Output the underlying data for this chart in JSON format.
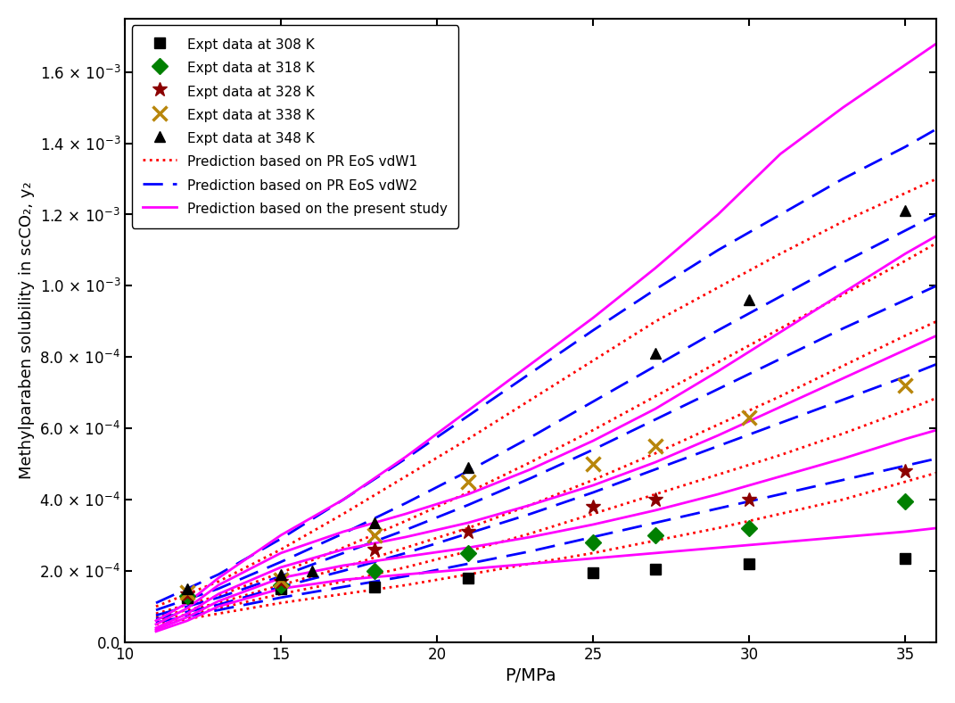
{
  "title": "",
  "xlabel": "P/MPa",
  "ylabel": "Methylparaben solubility in scCO₂, y₂",
  "xlim": [
    10,
    36
  ],
  "ylim": [
    0.0,
    0.00175
  ],
  "yticks": [
    0.0,
    0.0002,
    0.0004,
    0.0006,
    0.0008,
    0.001,
    0.0012,
    0.0014,
    0.0016
  ],
  "xticks": [
    10,
    15,
    20,
    25,
    30,
    35
  ],
  "expt_308": {
    "x": [
      12,
      15,
      18,
      21,
      25,
      27,
      30,
      35
    ],
    "y": [
      0.000125,
      0.00015,
      0.000155,
      0.00018,
      0.000195,
      0.000205,
      0.00022,
      0.000235
    ],
    "color": "black",
    "marker": "s",
    "label": "Expt data at 308 K"
  },
  "expt_318": {
    "x": [
      12,
      15,
      18,
      21,
      25,
      27,
      30,
      35
    ],
    "y": [
      0.00013,
      0.00016,
      0.0002,
      0.00025,
      0.00028,
      0.0003,
      0.00032,
      0.000395
    ],
    "color": "green",
    "marker": "D",
    "label": "Expt data at 318 K"
  },
  "expt_328": {
    "x": [
      12,
      15,
      18,
      21,
      25,
      27,
      30,
      35
    ],
    "y": [
      0.000135,
      0.00017,
      0.00026,
      0.00031,
      0.00038,
      0.0004,
      0.0004,
      0.00048
    ],
    "color": "darkred",
    "marker": "*",
    "label": "Expt data at 328 K"
  },
  "expt_338": {
    "x": [
      12,
      15,
      18,
      21,
      25,
      27,
      30,
      35
    ],
    "y": [
      0.00014,
      0.000175,
      0.0003,
      0.00045,
      0.0005,
      0.00055,
      0.00063,
      0.00072
    ],
    "color": "#b8860b",
    "marker": "x",
    "label": "Expt data at 338 K"
  },
  "expt_348": {
    "x": [
      12,
      15,
      16,
      18,
      21,
      27,
      30,
      35
    ],
    "y": [
      0.00015,
      0.00019,
      0.0002,
      0.000335,
      0.00049,
      0.00081,
      0.00096,
      0.00121
    ],
    "color": "black",
    "marker": "^",
    "label": "Expt data at 348 K"
  },
  "pred_vdw1": {
    "temps": [
      "308",
      "318",
      "328",
      "338",
      "348"
    ],
    "color": "red",
    "linestyle": "dotted",
    "linewidth": 2.0,
    "label": "Prediction based on PR EoS vdW1",
    "curves": {
      "308": {
        "x": [
          11,
          13,
          15,
          17,
          19,
          21,
          23,
          25,
          27,
          29,
          31,
          33,
          35,
          36
        ],
        "y": [
          5e-05,
          8e-05,
          0.00011,
          0.000135,
          0.00016,
          0.00019,
          0.00022,
          0.00025,
          0.000285,
          0.00032,
          0.00036,
          0.0004,
          0.00045,
          0.000475
        ]
      },
      "318": {
        "x": [
          11,
          13,
          15,
          17,
          19,
          21,
          23,
          25,
          27,
          29,
          31,
          33,
          35,
          36
        ],
        "y": [
          6e-05,
          9.5e-05,
          0.000135,
          0.00017,
          0.00021,
          0.000255,
          0.000305,
          0.00036,
          0.000415,
          0.00047,
          0.000525,
          0.000585,
          0.00065,
          0.000685
        ]
      },
      "328": {
        "x": [
          11,
          13,
          15,
          17,
          19,
          21,
          23,
          25,
          27,
          29,
          31,
          33,
          35,
          36
        ],
        "y": [
          7e-05,
          0.00011,
          0.00016,
          0.00021,
          0.000265,
          0.00032,
          0.000385,
          0.000455,
          0.00053,
          0.00061,
          0.00069,
          0.000775,
          0.00086,
          0.0009
        ]
      },
      "338": {
        "x": [
          11,
          13,
          15,
          17,
          19,
          21,
          23,
          25,
          27,
          29,
          31,
          33,
          35,
          36
        ],
        "y": [
          8e-05,
          0.00013,
          0.000195,
          0.000265,
          0.00034,
          0.00042,
          0.000505,
          0.000595,
          0.00069,
          0.000785,
          0.00088,
          0.000975,
          0.00107,
          0.00112
        ]
      },
      "348": {
        "x": [
          11,
          13,
          15,
          17,
          19,
          21,
          23,
          25,
          27,
          29,
          31,
          33,
          35,
          36
        ],
        "y": [
          0.0001,
          0.00017,
          0.00026,
          0.00036,
          0.000465,
          0.00057,
          0.00068,
          0.00079,
          0.0009,
          0.000995,
          0.00109,
          0.00118,
          0.00126,
          0.0013
        ]
      }
    }
  },
  "pred_vdw2": {
    "temps": [
      "308",
      "318",
      "328",
      "338",
      "348"
    ],
    "color": "blue",
    "linestyle": "dashed",
    "linewidth": 2.0,
    "label": "Prediction based on PR EoS vdW2",
    "curves": {
      "308": {
        "x": [
          11,
          13,
          15,
          17,
          19,
          21,
          23,
          25,
          27,
          29,
          31,
          33,
          35,
          36
        ],
        "y": [
          5.5e-05,
          9e-05,
          0.000125,
          0.000155,
          0.000185,
          0.00022,
          0.000255,
          0.000295,
          0.000335,
          0.000375,
          0.000415,
          0.000455,
          0.000495,
          0.000515
        ]
      },
      "318": {
        "x": [
          11,
          13,
          15,
          17,
          19,
          21,
          23,
          25,
          27,
          29,
          31,
          33,
          35,
          36
        ],
        "y": [
          6.5e-05,
          0.000105,
          0.000155,
          0.0002,
          0.00025,
          0.000305,
          0.00036,
          0.00042,
          0.000485,
          0.00055,
          0.000615,
          0.00068,
          0.000745,
          0.00078
        ]
      },
      "328": {
        "x": [
          11,
          13,
          15,
          17,
          19,
          21,
          23,
          25,
          27,
          29,
          31,
          33,
          35,
          36
        ],
        "y": [
          7.5e-05,
          0.000125,
          0.000185,
          0.00025,
          0.000315,
          0.000385,
          0.00046,
          0.00054,
          0.000625,
          0.00071,
          0.000795,
          0.00088,
          0.00096,
          0.001
        ]
      },
      "338": {
        "x": [
          11,
          13,
          15,
          17,
          19,
          21,
          23,
          25,
          27,
          29,
          31,
          33,
          35,
          36
        ],
        "y": [
          9e-05,
          0.00015,
          0.000225,
          0.000305,
          0.00039,
          0.00048,
          0.000575,
          0.000675,
          0.000775,
          0.000875,
          0.00097,
          0.001065,
          0.001155,
          0.0012
        ]
      },
      "348": {
        "x": [
          11,
          13,
          15,
          17,
          19,
          21,
          23,
          25,
          27,
          29,
          31,
          33,
          35,
          36
        ],
        "y": [
          0.00011,
          0.00019,
          0.00029,
          0.0004,
          0.000515,
          0.000635,
          0.000755,
          0.000875,
          0.00099,
          0.0011,
          0.0012,
          0.0013,
          0.00139,
          0.00144
        ]
      }
    }
  },
  "pred_present": {
    "temps": [
      "308",
      "318",
      "328",
      "338",
      "348"
    ],
    "color": "magenta",
    "linestyle": "solid",
    "linewidth": 2.0,
    "label": "Prediction based on the present study",
    "curves": {
      "308": {
        "x": [
          11,
          12,
          13,
          15,
          17,
          19,
          21,
          23,
          25,
          27,
          29,
          31,
          33,
          35,
          36
        ],
        "y": [
          3e-05,
          6e-05,
          0.0001,
          0.00015,
          0.000175,
          0.00019,
          0.000205,
          0.00022,
          0.000235,
          0.00025,
          0.000265,
          0.00028,
          0.000295,
          0.00031,
          0.00032
        ]
      },
      "318": {
        "x": [
          11,
          12,
          13,
          15,
          17,
          19,
          21,
          23,
          25,
          27,
          29,
          31,
          33,
          35,
          36
        ],
        "y": [
          3.5e-05,
          7e-05,
          0.000115,
          0.00018,
          0.000215,
          0.00024,
          0.000265,
          0.000295,
          0.00033,
          0.00037,
          0.000415,
          0.000465,
          0.000515,
          0.00057,
          0.000595
        ]
      },
      "328": {
        "x": [
          11,
          12,
          13,
          15,
          17,
          19,
          21,
          23,
          25,
          27,
          29,
          31,
          33,
          35,
          36
        ],
        "y": [
          4e-05,
          8e-05,
          0.000135,
          0.00021,
          0.00026,
          0.000295,
          0.000335,
          0.000385,
          0.00044,
          0.000505,
          0.00058,
          0.00066,
          0.00074,
          0.00082,
          0.00086
        ]
      },
      "338": {
        "x": [
          11,
          12,
          13,
          15,
          17,
          19,
          21,
          23,
          25,
          27,
          29,
          31,
          33,
          35,
          36
        ],
        "y": [
          5e-05,
          9.5e-05,
          0.00016,
          0.00025,
          0.00031,
          0.00036,
          0.000415,
          0.000485,
          0.000565,
          0.000655,
          0.00076,
          0.00087,
          0.00098,
          0.00109,
          0.00114
        ]
      },
      "348": {
        "x": [
          11,
          12,
          13,
          15,
          16,
          17,
          18,
          19,
          21,
          23,
          25,
          27,
          29,
          31,
          33,
          35,
          36
        ],
        "y": [
          6e-05,
          0.00011,
          0.00018,
          0.0003,
          0.00035,
          0.0004,
          0.00046,
          0.00052,
          0.00065,
          0.00078,
          0.00091,
          0.00105,
          0.0012,
          0.00137,
          0.0015,
          0.00162,
          0.00168
        ]
      }
    }
  },
  "background_color": "white"
}
